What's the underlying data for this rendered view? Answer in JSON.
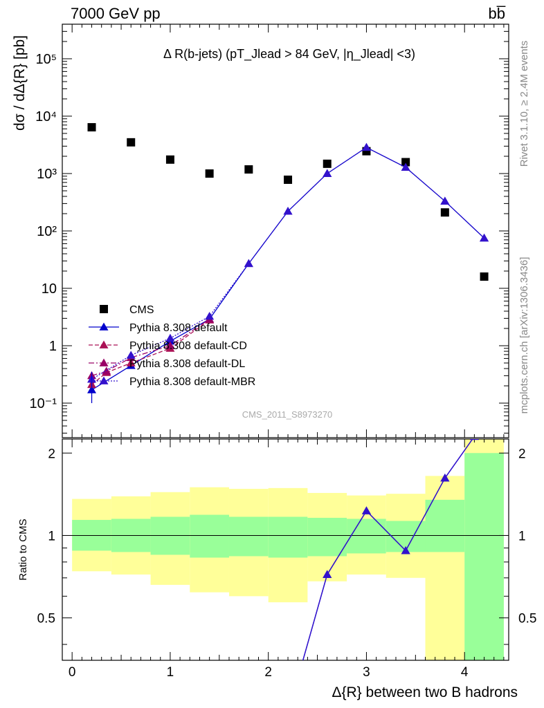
{
  "header": {
    "energy_label": "7000 GeV pp",
    "process_label": "bb̅"
  },
  "side_labels": {
    "rivet": "Rivet 3.1.10, ≥ 2.4M events",
    "mcplots": "mcplots.cern.ch [arXiv:1306.3436]"
  },
  "chart_data": [
    {
      "type": "scatter",
      "panel": "main",
      "title": "Δ R(b-jets) (pT_Jlead > 84 GeV, |η_Jlead| <3)",
      "ylabel": "dσ / dΔ{R} [pb]",
      "yscale": "log",
      "ylim": [
        0.025,
        400000
      ],
      "xlim": [
        -0.1,
        4.45
      ],
      "y_tick_labels": [
        "10⁻¹",
        "1",
        "10",
        "10²",
        "10³",
        "10⁴",
        "10⁵"
      ],
      "y_tick_values": [
        0.1,
        1,
        10,
        100,
        1000,
        10000,
        100000
      ],
      "watermark": "CMS_2011_S8973270",
      "legend_position": "bottom-left",
      "series": [
        {
          "name": "CMS",
          "color": "#000000",
          "marker": "square",
          "x": [
            0.2,
            0.6,
            1.0,
            1.4,
            1.8,
            2.2,
            2.6,
            3.0,
            3.4,
            3.8,
            4.2
          ],
          "y": [
            6400,
            3500,
            1750,
            1000,
            1180,
            780,
            1480,
            2450,
            1580,
            210,
            16
          ]
        },
        {
          "name": "Pythia 8.308 default",
          "color": "#0000cc",
          "dash": "solid",
          "x": [
            0.2,
            0.6,
            1.0,
            1.4,
            1.8,
            2.2,
            2.6,
            3.0,
            3.4,
            3.8,
            4.2
          ],
          "y": [
            0.17,
            0.45,
            1.2,
            2.9,
            27,
            220,
            1000,
            2850,
            1280,
            330,
            75
          ]
        },
        {
          "name": "Pythia 8.308 default-CD",
          "color": "#aa1155",
          "dash": "dash",
          "x": [
            0.2,
            0.35,
            0.6,
            1.0,
            1.4
          ],
          "y": [
            0.21,
            0.34,
            0.5,
            0.9,
            2.8
          ]
        },
        {
          "name": "Pythia 8.308 default-DL",
          "color": "#990066",
          "dash": "dashdot",
          "x": [
            0.2,
            0.35,
            0.6,
            1.0,
            1.4
          ],
          "y": [
            0.3,
            0.36,
            0.62,
            1.0,
            2.9
          ]
        },
        {
          "name": "Pythia 8.308 default-MBR",
          "color": "#3311cc",
          "dash": "dot",
          "x": [
            0.2,
            0.6,
            1.0,
            1.4,
            1.8,
            2.2,
            2.6,
            3.0,
            3.4,
            3.8,
            4.2
          ],
          "y": [
            0.26,
            0.68,
            1.35,
            3.25,
            27,
            220,
            1000,
            2850,
            1280,
            330,
            75
          ]
        }
      ]
    },
    {
      "type": "line",
      "panel": "ratio",
      "ylabel": "Ratio to CMS",
      "xlabel": "Δ{R} between two B hadrons",
      "ylim": [
        0.35,
        2.25
      ],
      "xlim": [
        -0.1,
        4.45
      ],
      "x_tick_values": [
        0,
        1,
        2,
        3,
        4
      ],
      "x_tick_labels": [
        "0",
        "1",
        "2",
        "3",
        "4"
      ],
      "y_tick_values": [
        0.5,
        1,
        2
      ],
      "y_tick_labels": [
        "0.5",
        "1",
        "2"
      ],
      "bands": {
        "bin_edges": [
          0.0,
          0.4,
          0.8,
          1.2,
          1.6,
          2.0,
          2.4,
          2.8,
          3.2,
          3.6,
          4.0,
          4.4
        ],
        "green_lo": [
          0.88,
          0.87,
          0.85,
          0.83,
          0.84,
          0.83,
          0.84,
          0.86,
          0.87,
          0.87,
          0.35
        ],
        "green_hi": [
          1.14,
          1.15,
          1.17,
          1.19,
          1.17,
          1.17,
          1.16,
          1.15,
          1.13,
          1.35,
          2.0
        ],
        "yellow_lo": [
          0.74,
          0.72,
          0.66,
          0.62,
          0.6,
          0.57,
          0.68,
          0.72,
          0.7,
          0.35,
          0.35
        ],
        "yellow_hi": [
          1.36,
          1.39,
          1.44,
          1.5,
          1.48,
          1.49,
          1.43,
          1.4,
          1.42,
          1.65,
          2.25
        ],
        "green_color": "#99ff99",
        "yellow_color": "#ffff99"
      },
      "series": [
        {
          "name": "Pythia 8.308 default",
          "color": "#0000cc",
          "x": [
            2.3,
            2.6,
            3.0,
            3.4,
            3.8,
            4.1
          ],
          "y": [
            0.3,
            0.72,
            1.23,
            0.88,
            1.62,
            2.3
          ]
        },
        {
          "name": "Pythia 8.308 default-MBR",
          "color": "#3311cc",
          "x": [
            2.3,
            2.6,
            3.0,
            3.4,
            3.8,
            4.1
          ],
          "y": [
            0.3,
            0.72,
            1.23,
            0.88,
            1.62,
            2.3
          ]
        }
      ]
    }
  ]
}
